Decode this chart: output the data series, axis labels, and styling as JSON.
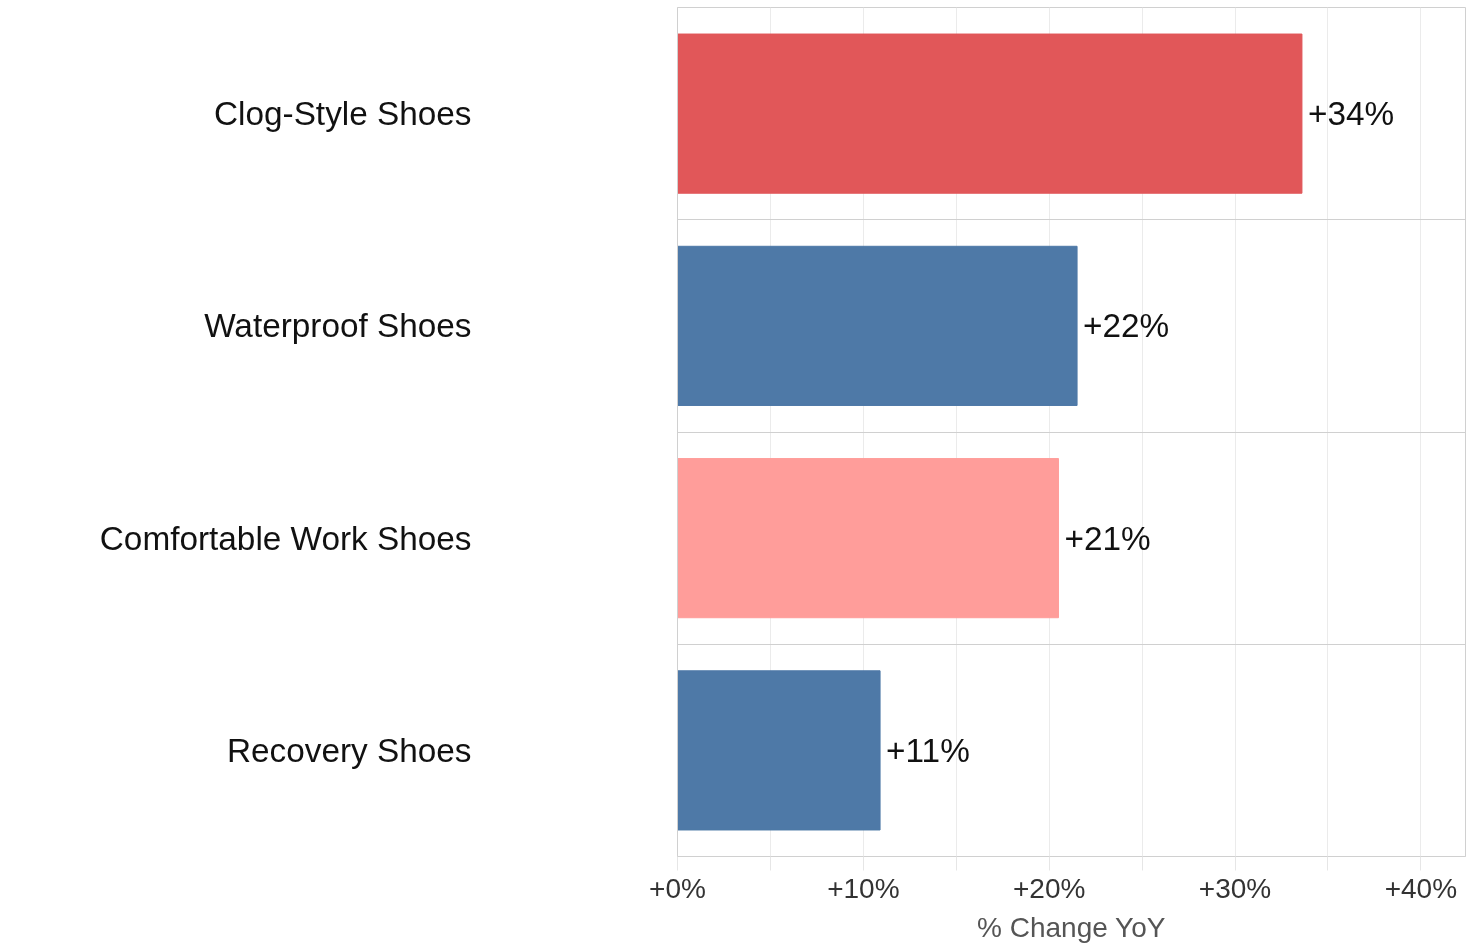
{
  "chart_data": {
    "type": "bar",
    "orientation": "horizontal",
    "xlabel": "% Change YoY",
    "categories": [
      "Clog-Style Shoes",
      "Waterproof Shoes",
      "Comfortable Work Shoes",
      "Recovery Shoes"
    ],
    "values": [
      33.6,
      21.5,
      20.5,
      10.9
    ],
    "colors": [
      "#e15759",
      "#4e79a7",
      "#ff9d9a",
      "#4e79a7"
    ],
    "value_labels": [
      "+34%",
      "+22%",
      "+21%",
      "+11%"
    ],
    "xlim": [
      0,
      42.4
    ],
    "xticks": [
      {
        "value": 0,
        "label": "+0%"
      },
      {
        "value": 5,
        "label": null
      },
      {
        "value": 10,
        "label": "+10%"
      },
      {
        "value": 15,
        "label": null
      },
      {
        "value": 20,
        "label": "+20%"
      },
      {
        "value": 25,
        "label": null
      },
      {
        "value": 30,
        "label": "+30%"
      },
      {
        "value": 35,
        "label": null
      },
      {
        "value": 40,
        "label": "+40%"
      }
    ],
    "grid": "x"
  }
}
